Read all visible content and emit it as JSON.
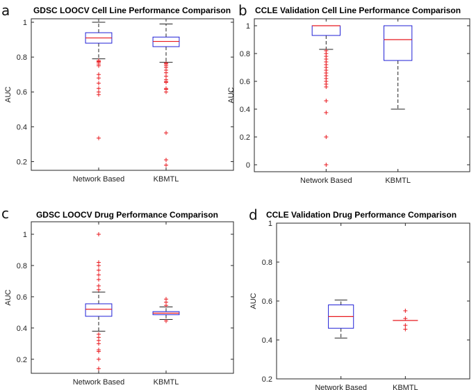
{
  "chart_data": [
    {
      "id": "a",
      "panel_letter": "a",
      "type": "box",
      "title": "GDSC LOOCV Cell Line Performance Comparison",
      "ylabel": "AUC",
      "xlabel": "",
      "ylim": [
        0.15,
        1.02
      ],
      "yticks": [
        0.2,
        0.4,
        0.6,
        0.8,
        1
      ],
      "ytick_labels": [
        "0.2",
        "0.4",
        "0.6",
        "0.8",
        "1"
      ],
      "categories": [
        "Network Based",
        "KBMTL"
      ],
      "boxes": [
        {
          "name": "Network Based",
          "q1": 0.88,
          "median": 0.91,
          "q3": 0.94,
          "whisker_low": 0.79,
          "whisker_high": 1.0,
          "outliers": [
            0.78,
            0.775,
            0.77,
            0.76,
            0.75,
            0.7,
            0.68,
            0.65,
            0.62,
            0.6,
            0.585,
            0.335
          ]
        },
        {
          "name": "KBMTL",
          "q1": 0.86,
          "median": 0.89,
          "q3": 0.915,
          "whisker_low": 0.77,
          "whisker_high": 0.99,
          "outliers": [
            0.765,
            0.76,
            0.75,
            0.74,
            0.725,
            0.71,
            0.69,
            0.67,
            0.66,
            0.655,
            0.62,
            0.615,
            0.6,
            0.365,
            0.21,
            0.18
          ]
        }
      ]
    },
    {
      "id": "b",
      "panel_letter": "b",
      "type": "box",
      "title": "CCLE Validation Cell Line Performance Comparison",
      "ylabel": "AUC",
      "xlabel": "",
      "ylim": [
        -0.05,
        1.05
      ],
      "yticks": [
        0,
        0.2,
        0.4,
        0.6,
        0.8,
        1
      ],
      "ytick_labels": [
        "0",
        "0.2",
        "0.4",
        "0.6",
        "0.8",
        "1"
      ],
      "categories": [
        "Network Based",
        "KBMTL"
      ],
      "boxes": [
        {
          "name": "Network Based",
          "q1": 0.93,
          "median": 1.0,
          "q3": 1.0,
          "whisker_low": 0.83,
          "whisker_high": 1.0,
          "outliers": [
            0.82,
            0.8,
            0.78,
            0.76,
            0.74,
            0.72,
            0.7,
            0.68,
            0.66,
            0.64,
            0.62,
            0.6,
            0.58,
            0.56,
            0.46,
            0.375,
            0.2,
            0.0
          ]
        },
        {
          "name": "KBMTL",
          "q1": 0.75,
          "median": 0.9,
          "q3": 1.0,
          "whisker_low": 0.4,
          "whisker_high": 1.0,
          "outliers": []
        }
      ]
    },
    {
      "id": "c",
      "panel_letter": "c",
      "type": "box",
      "title": "GDSC LOOCV Drug Performance Comparison",
      "ylabel": "AUC",
      "xlabel": "",
      "ylim": [
        0.11,
        1.08
      ],
      "yticks": [
        0.2,
        0.4,
        0.6,
        0.8,
        1
      ],
      "ytick_labels": [
        "0.2",
        "0.4",
        "0.6",
        "0.8",
        "1"
      ],
      "categories": [
        "Network Based",
        "KBMTL"
      ],
      "boxes": [
        {
          "name": "Network Based",
          "q1": 0.475,
          "median": 0.52,
          "q3": 0.555,
          "whisker_low": 0.38,
          "whisker_high": 0.63,
          "outliers": [
            1.0,
            0.82,
            0.8,
            0.77,
            0.74,
            0.71,
            0.67,
            0.645,
            0.36,
            0.34,
            0.32,
            0.3,
            0.26,
            0.25,
            0.2,
            0.14
          ]
        },
        {
          "name": "KBMTL",
          "q1": 0.485,
          "median": 0.495,
          "q3": 0.505,
          "whisker_low": 0.455,
          "whisker_high": 0.535,
          "outliers": [
            0.585,
            0.565,
            0.545,
            0.445
          ]
        }
      ]
    },
    {
      "id": "d",
      "panel_letter": "d",
      "type": "box",
      "title": "CCLE Validation Drug Performance Comparison",
      "ylabel": "AUC",
      "xlabel": "",
      "ylim": [
        0.2,
        1.0
      ],
      "yticks": [
        0.2,
        0.4,
        0.6,
        0.8,
        1
      ],
      "ytick_labels": [
        "0.2",
        "0.4",
        "0.6",
        "0.8",
        "1"
      ],
      "categories": [
        "Network Based",
        "KBMTL"
      ],
      "boxes": [
        {
          "name": "Network Based",
          "q1": 0.46,
          "median": 0.52,
          "q3": 0.58,
          "whisker_low": 0.41,
          "whisker_high": 0.605,
          "outliers": []
        },
        {
          "name": "KBMTL",
          "q1": 0.5,
          "median": 0.5,
          "q3": 0.5,
          "whisker_low": 0.5,
          "whisker_high": 0.5,
          "outliers": [
            0.55,
            0.51,
            0.475,
            0.455
          ]
        }
      ]
    }
  ]
}
